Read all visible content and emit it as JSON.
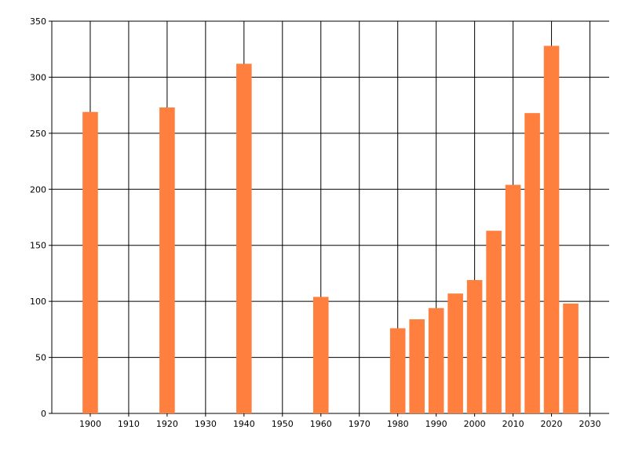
{
  "chart_data": {
    "type": "bar",
    "title": "",
    "xlabel": "",
    "ylabel": "",
    "x": [
      1900,
      1920,
      1940,
      1960,
      1980,
      1985,
      1990,
      1995,
      2000,
      2005,
      2010,
      2015,
      2020,
      2025
    ],
    "values": [
      269,
      273,
      312,
      104,
      76,
      84,
      94,
      107,
      119,
      163,
      204,
      268,
      328,
      98
    ],
    "xlim": [
      1890,
      2035
    ],
    "ylim": [
      0,
      350
    ],
    "xticks": [
      "1900",
      "1910",
      "1920",
      "1930",
      "1940",
      "1950",
      "1960",
      "1970",
      "1980",
      "1990",
      "2000",
      "2010",
      "2020",
      "2030"
    ],
    "yticks": [
      "0",
      "50",
      "100",
      "150",
      "200",
      "250",
      "300",
      "350"
    ],
    "grid": true,
    "bar_color": "#ff7f3f",
    "bar_width_years": 4
  }
}
